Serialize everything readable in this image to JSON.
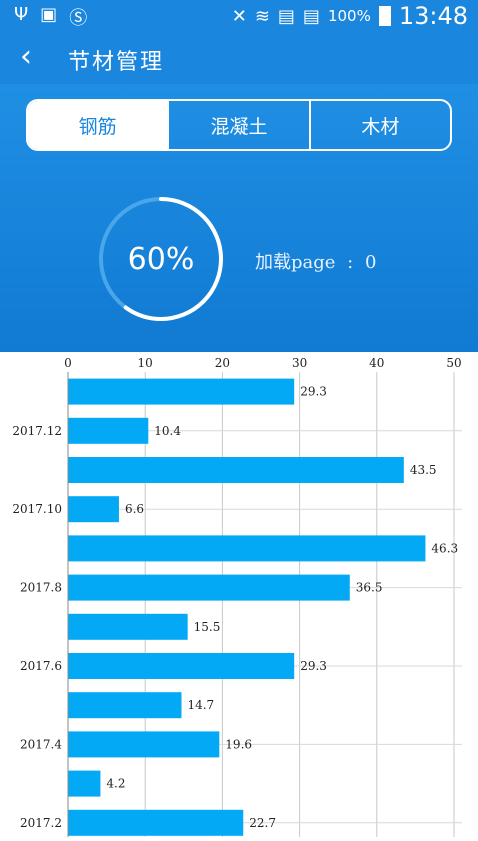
{
  "status_bar": {
    "left_icons": [
      "usb-icon",
      "image-icon",
      "s-app-icon"
    ],
    "battery_percent": "100%",
    "time": "13:48"
  },
  "header": {
    "title": "节材管理"
  },
  "tabs": [
    {
      "label": "钢筋",
      "active": true
    },
    {
      "label": "混凝土",
      "active": false
    },
    {
      "label": "木材",
      "active": false
    }
  ],
  "progress": {
    "percent_label": "60%",
    "value": 0.6
  },
  "page_info": {
    "label": "加载page",
    "separator": ":",
    "value": "0"
  },
  "chart_data": {
    "type": "bar",
    "orientation": "horizontal",
    "categories": [
      "",
      "2017.12",
      "",
      "2017.10",
      "",
      "2017.8",
      "",
      "2017.6",
      "",
      "2017.4",
      "",
      "2017.2"
    ],
    "values": [
      29.3,
      10.4,
      43.5,
      6.6,
      46.3,
      36.5,
      15.5,
      29.3,
      14.7,
      19.6,
      4.2,
      22.7
    ],
    "xlim": [
      0,
      50
    ],
    "xticks": [
      0,
      10,
      20,
      30,
      40,
      50
    ],
    "bar_color": "#03a9f4",
    "grid": true
  }
}
